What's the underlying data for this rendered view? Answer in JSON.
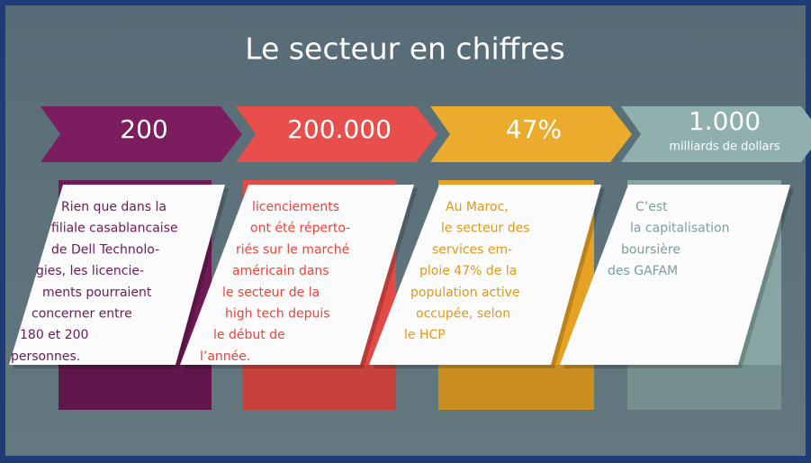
{
  "header": {
    "title": "Le secteur en chiffres"
  },
  "cards": [
    {
      "headline": "200",
      "lines": [
        "Rien que dans la",
        "filiale casablancaise",
        "de Dell Technolo-",
        "gies, les licencie-",
        "ments pourraient",
        "concerner entre",
        "180 et 200",
        "personnes."
      ]
    },
    {
      "headline": "200.000",
      "lines": [
        "licenciements",
        "ont été réperto-",
        "riés sur le marché",
        "américain dans",
        "le secteur de la",
        "high tech depuis",
        "le début de",
        "l’année."
      ]
    },
    {
      "headline": "47%",
      "lines": [
        "Au Maroc,",
        "le secteur des",
        "services em-",
        "ploie 47% de la",
        "population active",
        "occupée, selon",
        "le HCP"
      ]
    },
    {
      "headline": "1.000",
      "subheadline": "milliards de dollars",
      "lines": [
        "C’est",
        "la capitalisation",
        "boursière",
        "des GAFAM"
      ]
    }
  ]
}
